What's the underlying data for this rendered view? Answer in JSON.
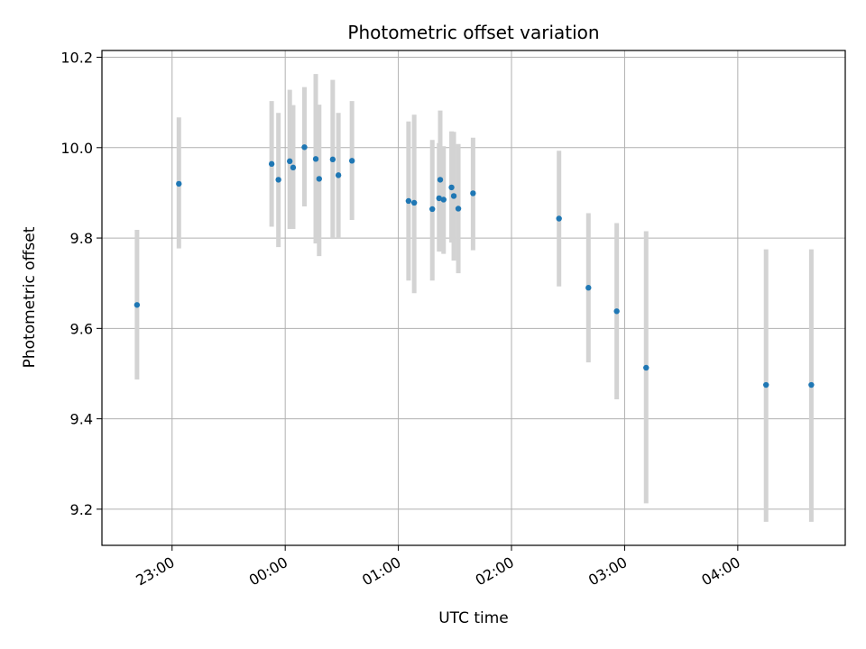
{
  "chart_data": {
    "type": "scatter",
    "title": "Photometric offset variation",
    "xlabel": "UTC time",
    "ylabel": "Photometric offset",
    "x_unit": "UTC time (hours, 0 = 00:00; negative = previous day)",
    "xlim": [
      -1.62,
      4.95
    ],
    "ylim": [
      9.12,
      10.215
    ],
    "x_ticks": [
      -1,
      0,
      1,
      2,
      3,
      4
    ],
    "x_tick_labels": [
      "23:00",
      "00:00",
      "01:00",
      "02:00",
      "03:00",
      "04:00"
    ],
    "y_ticks": [
      9.2,
      9.4,
      9.6,
      9.8,
      10.0,
      10.2
    ],
    "y_tick_labels": [
      "9.2",
      "9.4",
      "9.6",
      "9.8",
      "10.0",
      "10.2"
    ],
    "grid": true,
    "colors": {
      "point": "#1f77b4",
      "errorbar": "#d3d3d3",
      "grid": "#b0b0b0"
    },
    "points": [
      {
        "x": -1.31,
        "y": 9.652,
        "lo": 9.487,
        "hi": 9.818
      },
      {
        "x": -0.94,
        "y": 9.92,
        "lo": 9.777,
        "hi": 10.067
      },
      {
        "x": -0.12,
        "y": 9.964,
        "lo": 9.825,
        "hi": 10.103
      },
      {
        "x": -0.06,
        "y": 9.929,
        "lo": 9.78,
        "hi": 10.077
      },
      {
        "x": 0.04,
        "y": 9.97,
        "lo": 9.82,
        "hi": 10.128
      },
      {
        "x": 0.07,
        "y": 9.956,
        "lo": 9.82,
        "hi": 10.094
      },
      {
        "x": 0.17,
        "y": 10.001,
        "lo": 9.87,
        "hi": 10.134
      },
      {
        "x": 0.27,
        "y": 9.975,
        "lo": 9.788,
        "hi": 10.163
      },
      {
        "x": 0.3,
        "y": 9.931,
        "lo": 9.76,
        "hi": 10.095
      },
      {
        "x": 0.42,
        "y": 9.974,
        "lo": 9.798,
        "hi": 10.15
      },
      {
        "x": 0.47,
        "y": 9.939,
        "lo": 9.8,
        "hi": 10.077
      },
      {
        "x": 0.59,
        "y": 9.971,
        "lo": 9.84,
        "hi": 10.103
      },
      {
        "x": 1.09,
        "y": 9.882,
        "lo": 9.706,
        "hi": 10.058
      },
      {
        "x": 1.14,
        "y": 9.878,
        "lo": 9.678,
        "hi": 10.073
      },
      {
        "x": 1.3,
        "y": 9.864,
        "lo": 9.706,
        "hi": 10.017
      },
      {
        "x": 1.36,
        "y": 9.888,
        "lo": 9.77,
        "hi": 10.01
      },
      {
        "x": 1.37,
        "y": 9.929,
        "lo": 9.77,
        "hi": 10.082
      },
      {
        "x": 1.4,
        "y": 9.885,
        "lo": 9.765,
        "hi": 10.003
      },
      {
        "x": 1.47,
        "y": 9.912,
        "lo": 9.79,
        "hi": 10.036
      },
      {
        "x": 1.49,
        "y": 9.893,
        "lo": 9.75,
        "hi": 10.035
      },
      {
        "x": 1.53,
        "y": 9.865,
        "lo": 9.722,
        "hi": 10.008
      },
      {
        "x": 1.66,
        "y": 9.899,
        "lo": 9.773,
        "hi": 10.022
      },
      {
        "x": 2.42,
        "y": 9.843,
        "lo": 9.693,
        "hi": 9.993
      },
      {
        "x": 2.68,
        "y": 9.69,
        "lo": 9.525,
        "hi": 9.855
      },
      {
        "x": 2.93,
        "y": 9.638,
        "lo": 9.443,
        "hi": 9.833
      },
      {
        "x": 3.19,
        "y": 9.513,
        "lo": 9.213,
        "hi": 9.815
      },
      {
        "x": 4.25,
        "y": 9.475,
        "lo": 9.172,
        "hi": 9.775
      },
      {
        "x": 4.65,
        "y": 9.475,
        "lo": 9.172,
        "hi": 9.775
      }
    ]
  }
}
